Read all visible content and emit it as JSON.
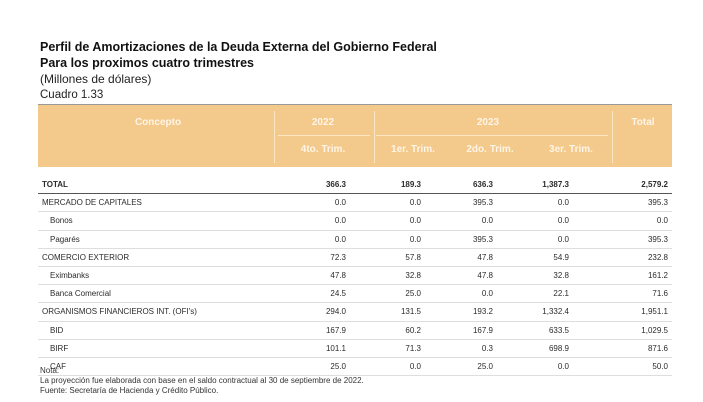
{
  "title": "Perfil de Amortizaciones de la Deuda Externa del Gobierno Federal",
  "subtitle": "Para los proximos cuatro trimestres",
  "units": "(Millones de dólares)",
  "cuadro": "Cuadro 1.33",
  "header": {
    "concepto": "Concepto",
    "year_2022": "2022",
    "year_2023": "2023",
    "total": "Total",
    "q4": "4to. Trim.",
    "q1": "1er. Trim.",
    "q2": "2do. Trim.",
    "q3": "3er. Trim."
  },
  "rows": [
    {
      "label": "TOTAL",
      "q4": "366.3",
      "q1": "189.3",
      "q2": "636.3",
      "q3": "1,387.3",
      "total": "2,579.2"
    },
    {
      "label": "MERCADO DE CAPITALES",
      "q4": "0.0",
      "q1": "0.0",
      "q2": "395.3",
      "q3": "0.0",
      "total": "395.3"
    },
    {
      "label": "Bonos",
      "q4": "0.0",
      "q1": "0.0",
      "q2": "0.0",
      "q3": "0.0",
      "total": "0.0"
    },
    {
      "label": "Pagarés",
      "q4": "0.0",
      "q1": "0.0",
      "q2": "395.3",
      "q3": "0.0",
      "total": "395.3"
    },
    {
      "label": "COMERCIO EXTERIOR",
      "q4": "72.3",
      "q1": "57.8",
      "q2": "47.8",
      "q3": "54.9",
      "total": "232.8"
    },
    {
      "label": "Eximbanks",
      "q4": "47.8",
      "q1": "32.8",
      "q2": "47.8",
      "q3": "32.8",
      "total": "161.2"
    },
    {
      "label": "Banca Comercial",
      "q4": "24.5",
      "q1": "25.0",
      "q2": "0.0",
      "q3": "22.1",
      "total": "71.6"
    },
    {
      "label": "ORGANISMOS FINANCIEROS INT. (OFI's)",
      "q4": "294.0",
      "q1": "131.5",
      "q2": "193.2",
      "q3": "1,332.4",
      "total": "1,951.1"
    },
    {
      "label": "BID",
      "q4": "167.9",
      "q1": "60.2",
      "q2": "167.9",
      "q3": "633.5",
      "total": "1,029.5"
    },
    {
      "label": "BIRF",
      "q4": "101.1",
      "q1": "71.3",
      "q2": "0.3",
      "q3": "698.9",
      "total": "871.6"
    },
    {
      "label": "CAF",
      "q4": "25.0",
      "q1": "0.0",
      "q2": "25.0",
      "q3": "0.0",
      "total": "50.0"
    }
  ],
  "notes": {
    "line1": "Nota:",
    "line2": "La proyección fue elaborada con base en el saldo contractual al 30 de septiembre de 2022.",
    "line3": "Fuente: Secretaría de Hacienda y Crédito Público."
  }
}
